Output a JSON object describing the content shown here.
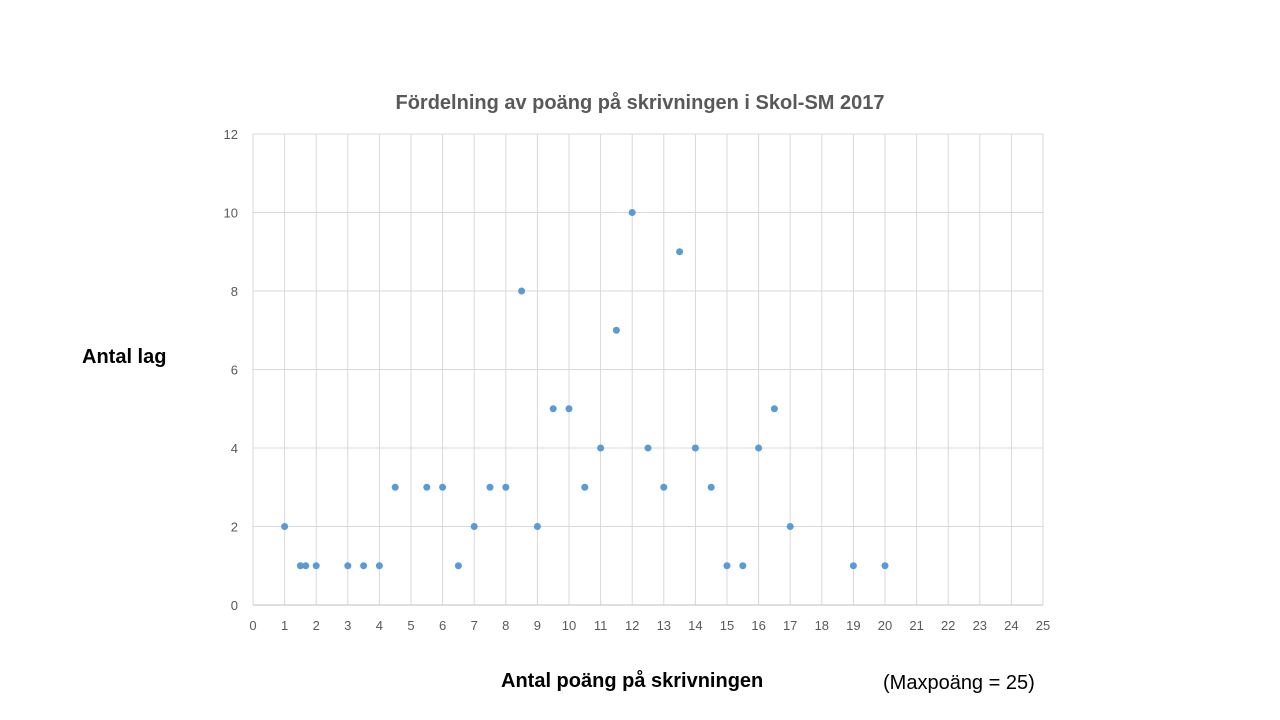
{
  "chart_data": {
    "type": "scatter",
    "title": "Fördelning av poäng på skrivningen i Skol-SM 2017",
    "xlabel": "Antal poäng på skrivningen",
    "ylabel": "Antal lag",
    "note": "(Maxpoäng = 25)",
    "xlim": [
      0,
      25
    ],
    "ylim": [
      0,
      12
    ],
    "x_ticks": [
      0,
      1,
      2,
      3,
      4,
      5,
      6,
      7,
      8,
      9,
      10,
      11,
      12,
      13,
      14,
      15,
      16,
      17,
      18,
      19,
      20,
      21,
      22,
      23,
      24,
      25
    ],
    "y_ticks": [
      0,
      2,
      4,
      6,
      8,
      10,
      12
    ],
    "grid": true,
    "marker_color": "#5b9bd5",
    "points": [
      {
        "x": 1,
        "y": 2
      },
      {
        "x": 1.5,
        "y": 1
      },
      {
        "x": 1.67,
        "y": 1
      },
      {
        "x": 2,
        "y": 1
      },
      {
        "x": 3,
        "y": 1
      },
      {
        "x": 3.5,
        "y": 1
      },
      {
        "x": 4,
        "y": 1
      },
      {
        "x": 4.5,
        "y": 3
      },
      {
        "x": 5.5,
        "y": 3
      },
      {
        "x": 6,
        "y": 3
      },
      {
        "x": 6.5,
        "y": 1
      },
      {
        "x": 7,
        "y": 2
      },
      {
        "x": 7.5,
        "y": 3
      },
      {
        "x": 8,
        "y": 3
      },
      {
        "x": 8.5,
        "y": 8
      },
      {
        "x": 9,
        "y": 2
      },
      {
        "x": 9.5,
        "y": 5
      },
      {
        "x": 10,
        "y": 5
      },
      {
        "x": 10.5,
        "y": 3
      },
      {
        "x": 11,
        "y": 4
      },
      {
        "x": 11.5,
        "y": 7
      },
      {
        "x": 12,
        "y": 10
      },
      {
        "x": 12.5,
        "y": 4
      },
      {
        "x": 13,
        "y": 3
      },
      {
        "x": 13.5,
        "y": 9
      },
      {
        "x": 14,
        "y": 4
      },
      {
        "x": 14.5,
        "y": 3
      },
      {
        "x": 15,
        "y": 1
      },
      {
        "x": 15.5,
        "y": 1
      },
      {
        "x": 16,
        "y": 4
      },
      {
        "x": 16.5,
        "y": 5
      },
      {
        "x": 17,
        "y": 2
      },
      {
        "x": 19,
        "y": 1
      },
      {
        "x": 20,
        "y": 1
      }
    ]
  }
}
